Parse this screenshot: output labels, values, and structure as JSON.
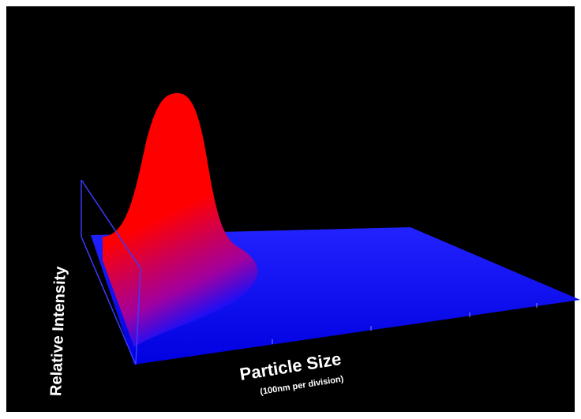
{
  "chart_data": {
    "type": "surface",
    "xlabel": "Particle Size",
    "xlabel_note": "(100nm per division)",
    "zlabel": "Relative Intensity"
  }
}
